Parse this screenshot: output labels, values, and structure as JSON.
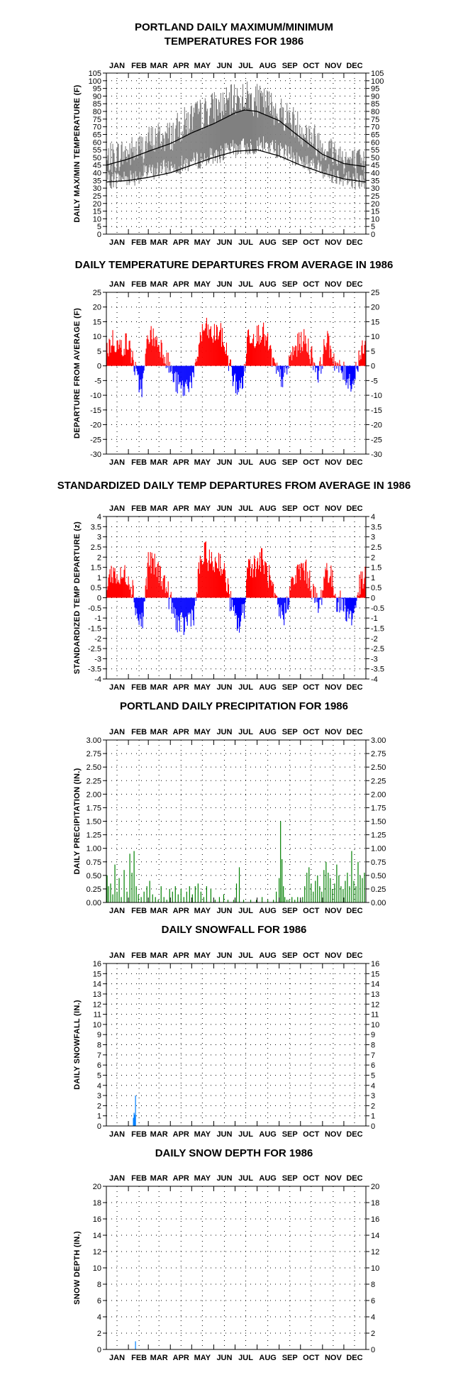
{
  "months": [
    "JAN",
    "FEB",
    "MAR",
    "APR",
    "MAY",
    "JUN",
    "JUL",
    "AUG",
    "SEP",
    "OCT",
    "NOV",
    "DEC"
  ],
  "colors": {
    "temp_band": "#808080",
    "normal_lines": "#000000",
    "positive": "#ff0000",
    "negative": "#0000ff",
    "precip": "#008000",
    "snow": "#0080ff"
  },
  "chart_data": [
    {
      "id": "temps",
      "type": "area",
      "title_lines": [
        "PORTLAND DAILY MAXIMUM/MINIMUM",
        "TEMPERATURES FOR 1986"
      ],
      "ylabel": "DAILY MAX/MIN TEMPERATURE (F)",
      "ylim": [
        0,
        105
      ],
      "yticks": [
        0,
        5,
        10,
        15,
        20,
        25,
        30,
        35,
        40,
        45,
        50,
        55,
        60,
        65,
        70,
        75,
        80,
        85,
        90,
        95,
        100,
        105
      ],
      "grid": true,
      "series": [
        {
          "role": "observed_max_anchors",
          "x": [
            1,
            15,
            32,
            46,
            60,
            75,
            91,
            105,
            121,
            136,
            152,
            166,
            182,
            196,
            213,
            227,
            244,
            258,
            274,
            288,
            305,
            319,
            335,
            349,
            365
          ],
          "values": [
            47,
            51,
            53,
            55,
            60,
            63,
            64,
            70,
            76,
            78,
            83,
            84,
            88,
            90,
            87,
            85,
            80,
            76,
            69,
            64,
            58,
            54,
            50,
            46,
            44
          ]
        },
        {
          "role": "observed_min_anchors",
          "x": [
            1,
            15,
            32,
            46,
            60,
            75,
            91,
            105,
            121,
            136,
            152,
            166,
            182,
            196,
            213,
            227,
            244,
            258,
            274,
            288,
            305,
            319,
            335,
            349,
            365
          ],
          "values": [
            35,
            36,
            37,
            38,
            40,
            42,
            44,
            45,
            47,
            49,
            51,
            53,
            56,
            57,
            58,
            58,
            55,
            52,
            48,
            45,
            42,
            39,
            37,
            35,
            34
          ]
        },
        {
          "role": "normal_high",
          "x": [
            1,
            32,
            60,
            91,
            121,
            152,
            182,
            196,
            213,
            244,
            274,
            305,
            335,
            365
          ],
          "values": [
            45,
            49,
            54,
            59,
            66,
            72,
            79,
            81,
            80,
            74,
            63,
            52,
            46,
            44
          ]
        },
        {
          "role": "normal_low",
          "x": [
            1,
            32,
            60,
            91,
            121,
            152,
            182,
            213,
            244,
            274,
            305,
            335,
            365
          ],
          "values": [
            34,
            35,
            37,
            40,
            45,
            50,
            54,
            55,
            51,
            45,
            40,
            36,
            34
          ]
        }
      ]
    },
    {
      "id": "departures",
      "type": "bar",
      "title_lines": [
        "DAILY TEMPERATURE DEPARTURES FROM AVERAGE IN 1986"
      ],
      "ylabel": "DEPARTURE FROM AVERAGE (F)",
      "ylim": [
        -30,
        25
      ],
      "yticks": [
        -30,
        -25,
        -20,
        -15,
        -10,
        -5,
        0,
        5,
        10,
        15,
        20,
        25
      ],
      "grid": true,
      "series": [
        {
          "role": "anchors",
          "x": [
            1,
            10,
            20,
            30,
            38,
            45,
            52,
            60,
            70,
            80,
            88,
            95,
            103,
            110,
            118,
            125,
            132,
            140,
            150,
            160,
            170,
            180,
            188,
            195,
            200,
            210,
            220,
            230,
            238,
            245,
            252,
            260,
            270,
            278,
            286,
            292,
            300,
            310,
            318,
            326,
            333,
            340,
            348,
            356,
            365
          ],
          "values": [
            5,
            9,
            6,
            8,
            3,
            -6,
            -7,
            11,
            9,
            6,
            1,
            -4,
            -7,
            -8,
            -5,
            -4,
            9,
            13,
            10,
            12,
            5,
            -5,
            -8,
            -3,
            11,
            10,
            12,
            6,
            -1,
            -4,
            -4,
            3,
            7,
            9,
            6,
            2,
            -3,
            9,
            5,
            -1,
            -2,
            -4,
            -6,
            3,
            6
          ]
        }
      ]
    },
    {
      "id": "standardized",
      "type": "bar",
      "title_lines": [
        "STANDARDIZED DAILY TEMP DEPARTURES FROM AVERAGE IN 1986"
      ],
      "ylabel": "STANDARDIZED TEMP DEPARTURE (z)",
      "ylim": [
        -4,
        4
      ],
      "yticks": [
        -4,
        -3.5,
        -3,
        -2.5,
        -2,
        -1.5,
        -1,
        -0.5,
        0,
        0.5,
        1,
        1.5,
        2,
        2.5,
        3,
        3.5,
        4
      ],
      "grid": true,
      "series": [
        {
          "role": "anchors",
          "x": [
            1,
            10,
            20,
            30,
            38,
            45,
            52,
            60,
            70,
            80,
            88,
            95,
            103,
            110,
            118,
            125,
            132,
            140,
            150,
            160,
            170,
            180,
            188,
            195,
            200,
            210,
            220,
            230,
            238,
            245,
            252,
            260,
            270,
            278,
            286,
            292,
            300,
            310,
            318,
            326,
            333,
            340,
            348,
            356,
            365
          ],
          "values": [
            0.8,
            1.3,
            0.9,
            1.2,
            0.5,
            -1,
            -1.2,
            1.8,
            1.5,
            1,
            0.2,
            -0.7,
            -1.3,
            -1.4,
            -0.9,
            -0.7,
            1.5,
            2.2,
            1.6,
            1.9,
            0.8,
            -0.9,
            -1.4,
            -0.5,
            1.7,
            1.6,
            1.9,
            1,
            -0.2,
            -0.8,
            -0.8,
            0.5,
            1.2,
            1.5,
            1,
            0.3,
            -0.6,
            1.5,
            0.9,
            -0.2,
            -0.3,
            -0.7,
            -1,
            0.5,
            1
          ]
        }
      ]
    },
    {
      "id": "precip",
      "type": "bar",
      "title_lines": [
        "PORTLAND DAILY PRECIPITATION FOR 1986"
      ],
      "ylabel": "DAILY PRECIPITATION (IN.)",
      "ylim": [
        0,
        3
      ],
      "yticks": [
        "0.00",
        "0.25",
        "0.50",
        "0.75",
        "1.00",
        "1.25",
        "1.50",
        "1.75",
        "2.00",
        "2.25",
        "2.50",
        "2.75",
        "3.00"
      ],
      "grid": true,
      "series": [
        {
          "role": "daily",
          "x": [
            2,
            4,
            7,
            10,
            13,
            16,
            19,
            22,
            26,
            30,
            34,
            37,
            40,
            43,
            46,
            50,
            54,
            58,
            62,
            66,
            70,
            74,
            78,
            82,
            86,
            90,
            94,
            98,
            102,
            106,
            110,
            114,
            118,
            122,
            126,
            130,
            134,
            138,
            142,
            148,
            154,
            160,
            166,
            172,
            180,
            184,
            188,
            194,
            204,
            212,
            220,
            228,
            236,
            240,
            244,
            246,
            248,
            250,
            252,
            255,
            258,
            262,
            266,
            270,
            274,
            277,
            280,
            283,
            286,
            289,
            292,
            295,
            298,
            301,
            304,
            307,
            310,
            313,
            316,
            319,
            322,
            325,
            328,
            331,
            334,
            337,
            340,
            343,
            346,
            349,
            352,
            355,
            358,
            361,
            364
          ],
          "values": [
            0.5,
            0.3,
            0.35,
            0.15,
            0.7,
            0.2,
            0.45,
            0.1,
            0.6,
            0.2,
            0.9,
            0.55,
            0.95,
            0.3,
            0.15,
            0.1,
            0.2,
            0.3,
            0.4,
            0.15,
            0.1,
            0.05,
            0.3,
            0.1,
            0.05,
            0.25,
            0.2,
            0.3,
            0.15,
            0.25,
            0.1,
            0.2,
            0.3,
            0.15,
            0.3,
            0.35,
            0.2,
            0.1,
            0.3,
            0.25,
            0.05,
            0.1,
            0.15,
            0.05,
            0.05,
            0.35,
            0.65,
            0.05,
            0.05,
            0.05,
            0.1,
            0.05,
            0.05,
            0.2,
            0.45,
            1.5,
            0.8,
            0.3,
            0.1,
            0.05,
            0.05,
            0.1,
            0.05,
            0.1,
            0.05,
            0.1,
            0.3,
            0.55,
            0.65,
            0.35,
            0.2,
            0.4,
            0.5,
            0.3,
            0.2,
            0.6,
            0.75,
            0.55,
            0.45,
            0.25,
            0.35,
            0.7,
            0.5,
            0.3,
            0.25,
            0.4,
            0.55,
            0.3,
            0.95,
            0.4,
            0.3,
            0.75,
            0.5,
            0.45,
            0.55
          ]
        }
      ]
    },
    {
      "id": "snowfall",
      "type": "bar",
      "title_lines": [
        "DAILY SNOWFALL FOR 1986"
      ],
      "ylabel": "DAILY SNOWFALL (IN.)",
      "ylim": [
        0,
        16
      ],
      "yticks": [
        0,
        1,
        2,
        3,
        4,
        5,
        6,
        7,
        8,
        9,
        10,
        11,
        12,
        13,
        14,
        15,
        16
      ],
      "grid": true,
      "series": [
        {
          "role": "daily",
          "x": [
            39,
            40,
            41,
            42
          ],
          "values": [
            0.8,
            1.3,
            1.1,
            3
          ]
        }
      ]
    },
    {
      "id": "snowdepth",
      "type": "bar",
      "title_lines": [
        "DAILY SNOW DEPTH FOR 1986"
      ],
      "ylabel": "SNOW DEPTH (IN.)",
      "ylim": [
        0,
        20
      ],
      "yticks": [
        0,
        2,
        4,
        6,
        8,
        10,
        12,
        14,
        16,
        18,
        20
      ],
      "grid": true,
      "series": [
        {
          "role": "daily",
          "x": [
            42
          ],
          "values": [
            1
          ]
        }
      ]
    }
  ]
}
